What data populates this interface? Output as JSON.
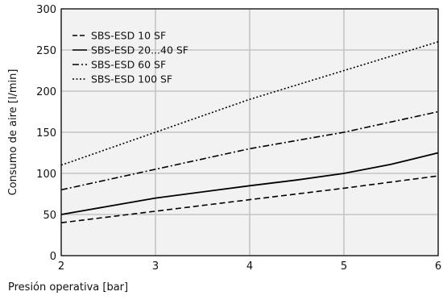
{
  "chart_data": {
    "type": "line",
    "title": "",
    "xlabel": "Presión operativa [bar]",
    "ylabel": "Consumo de aire [l/min]",
    "xlim": [
      2,
      6
    ],
    "ylim": [
      0,
      300
    ],
    "xticks": [
      2,
      3,
      4,
      5,
      6
    ],
    "yticks": [
      0,
      50,
      100,
      150,
      200,
      250,
      300
    ],
    "grid": true,
    "legend_position": "top-left",
    "series": [
      {
        "name": "SBS-ESD 10 SF",
        "dash": "dashed",
        "x": [
          2,
          3,
          4,
          5,
          6
        ],
        "y": [
          40,
          54,
          68,
          82,
          97
        ]
      },
      {
        "name": "SBS-ESD 20...40 SF",
        "dash": "solid",
        "x": [
          2,
          3,
          4,
          4.5,
          5,
          5.5,
          6
        ],
        "y": [
          50,
          70,
          85,
          92,
          100,
          111,
          125
        ]
      },
      {
        "name": "SBS-ESD 60 SF",
        "dash": "dashdot",
        "x": [
          2,
          3,
          4,
          5,
          6
        ],
        "y": [
          80,
          105,
          130,
          150,
          175
        ]
      },
      {
        "name": "SBS-ESD 100 SF",
        "dash": "dotted",
        "x": [
          2,
          3,
          4,
          5,
          6
        ],
        "y": [
          110,
          150,
          190,
          225,
          260
        ]
      }
    ]
  }
}
